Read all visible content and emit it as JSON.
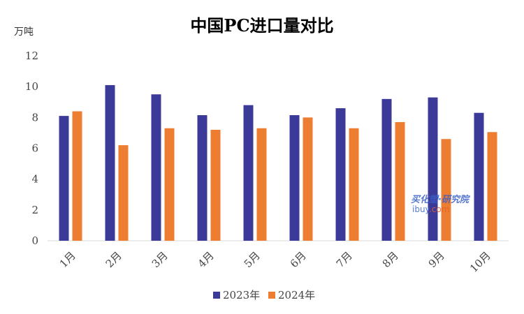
{
  "chart_data": {
    "type": "bar",
    "title": "中国PC进口量对比",
    "ylabel": "万吨",
    "ylim": [
      0,
      12
    ],
    "yticks": [
      0,
      2,
      4,
      6,
      8,
      10,
      12
    ],
    "grid": false,
    "legend_position": "bottom",
    "categories": [
      "1月",
      "2月",
      "3月",
      "4月",
      "5月",
      "6月",
      "7月",
      "8月",
      "9月",
      "10月"
    ],
    "series": [
      {
        "name": "2023年",
        "color": "#3b3a98",
        "values": [
          8.1,
          10.1,
          9.5,
          8.15,
          8.8,
          8.15,
          8.6,
          9.2,
          9.3,
          8.3
        ]
      },
      {
        "name": "2024年",
        "color": "#ed7d31",
        "values": [
          8.4,
          6.2,
          7.3,
          7.2,
          7.3,
          8.0,
          7.3,
          7.7,
          6.6,
          7.05
        ]
      }
    ]
  },
  "watermark": {
    "line1": "买化塑·研究院",
    "line2_a": "ibuy",
    "line2_b": ".com"
  }
}
